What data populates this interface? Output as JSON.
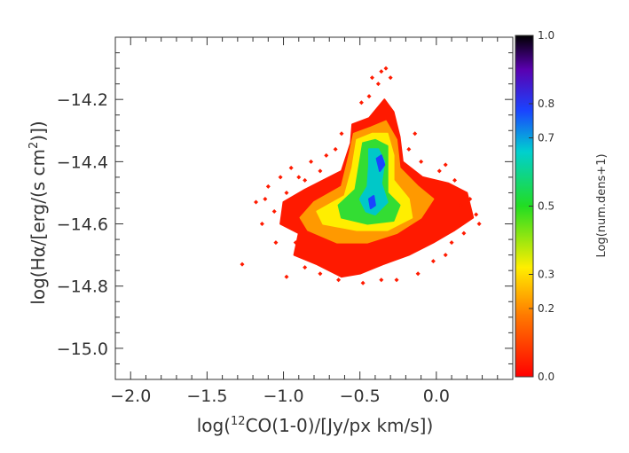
{
  "chart_data": {
    "type": "heatmap",
    "title": "",
    "xlabel": "log(12CO(1-0)/[Jy/px km/s])",
    "ylabel": "log(Hα/[erg/(s cm2)])",
    "xlim": [
      -2.1,
      0.5
    ],
    "ylim": [
      -15.1,
      -14.0
    ],
    "xticks": [
      -2.0,
      -1.5,
      -1.0,
      -0.5,
      0.0
    ],
    "xtick_labels": [
      "−2.0",
      "−1.5",
      "−1.0",
      "−0.5",
      "0.0"
    ],
    "yticks": [
      -14.2,
      -14.4,
      -14.6,
      -14.8,
      -15.0
    ],
    "ytick_labels": [
      "−14.2",
      "−14.4",
      "−14.6",
      "−14.8",
      "−15.0"
    ],
    "grid": false,
    "colorbar": {
      "label": "Log(num.dens+1)",
      "range": [
        0.0,
        1.0
      ],
      "ticks": [
        0.0,
        0.2,
        0.3,
        0.5,
        0.7,
        0.8,
        1.0
      ],
      "tick_labels": [
        "0.0",
        "0.2",
        "0.3",
        "0.5",
        "0.7",
        "0.8",
        "1.0"
      ],
      "colormap": "rainbow (red → black)"
    },
    "density_regions": [
      {
        "level": 0.05,
        "color": "#ff1a00",
        "polygon": [
          [
            -0.78,
            -14.73
          ],
          [
            -0.93,
            -14.7
          ],
          [
            -0.9,
            -14.63
          ],
          [
            -1.02,
            -14.6
          ],
          [
            -1.0,
            -14.53
          ],
          [
            -0.86,
            -14.49
          ],
          [
            -0.62,
            -14.43
          ],
          [
            -0.56,
            -14.34
          ],
          [
            -0.55,
            -14.28
          ],
          [
            -0.44,
            -14.26
          ],
          [
            -0.34,
            -14.2
          ],
          [
            -0.28,
            -14.24
          ],
          [
            -0.24,
            -14.32
          ],
          [
            -0.22,
            -14.4
          ],
          [
            -0.09,
            -14.45
          ],
          [
            0.08,
            -14.47
          ],
          [
            0.2,
            -14.5
          ],
          [
            0.24,
            -14.58
          ],
          [
            0.12,
            -14.62
          ],
          [
            -0.02,
            -14.66
          ],
          [
            -0.18,
            -14.7
          ],
          [
            -0.35,
            -14.73
          ],
          [
            -0.5,
            -14.76
          ],
          [
            -0.62,
            -14.77
          ]
        ]
      },
      {
        "level": 0.15,
        "color": "#ff9900",
        "polygon": [
          [
            -0.84,
            -14.62
          ],
          [
            -0.89,
            -14.58
          ],
          [
            -0.8,
            -14.53
          ],
          [
            -0.62,
            -14.48
          ],
          [
            -0.57,
            -14.38
          ],
          [
            -0.54,
            -14.31
          ],
          [
            -0.43,
            -14.29
          ],
          [
            -0.33,
            -14.27
          ],
          [
            -0.26,
            -14.33
          ],
          [
            -0.24,
            -14.42
          ],
          [
            -0.12,
            -14.48
          ],
          [
            -0.02,
            -14.52
          ],
          [
            -0.1,
            -14.58
          ],
          [
            -0.26,
            -14.63
          ],
          [
            -0.45,
            -14.66
          ],
          [
            -0.65,
            -14.66
          ]
        ]
      },
      {
        "level": 0.25,
        "color": "#ffee00",
        "polygon": [
          [
            -0.74,
            -14.6
          ],
          [
            -0.78,
            -14.56
          ],
          [
            -0.6,
            -14.51
          ],
          [
            -0.55,
            -14.42
          ],
          [
            -0.52,
            -14.33
          ],
          [
            -0.42,
            -14.31
          ],
          [
            -0.32,
            -14.31
          ],
          [
            -0.28,
            -14.38
          ],
          [
            -0.28,
            -14.46
          ],
          [
            -0.18,
            -14.52
          ],
          [
            -0.16,
            -14.58
          ],
          [
            -0.32,
            -14.62
          ],
          [
            -0.52,
            -14.62
          ]
        ]
      },
      {
        "level": 0.4,
        "color": "#33dd33",
        "polygon": [
          [
            -0.62,
            -14.58
          ],
          [
            -0.64,
            -14.54
          ],
          [
            -0.53,
            -14.49
          ],
          [
            -0.5,
            -14.4
          ],
          [
            -0.48,
            -14.34
          ],
          [
            -0.4,
            -14.33
          ],
          [
            -0.32,
            -14.35
          ],
          [
            -0.32,
            -14.43
          ],
          [
            -0.32,
            -14.5
          ],
          [
            -0.24,
            -14.54
          ],
          [
            -0.28,
            -14.59
          ],
          [
            -0.45,
            -14.6
          ]
        ]
      },
      {
        "level": 0.6,
        "color": "#00c8c8",
        "polygon": [
          [
            -0.46,
            -14.56
          ],
          [
            -0.5,
            -14.52
          ],
          [
            -0.45,
            -14.48
          ],
          [
            -0.44,
            -14.41
          ],
          [
            -0.44,
            -14.36
          ],
          [
            -0.38,
            -14.36
          ],
          [
            -0.34,
            -14.4
          ],
          [
            -0.36,
            -14.47
          ],
          [
            -0.32,
            -14.53
          ],
          [
            -0.4,
            -14.57
          ]
        ]
      },
      {
        "level": 0.75,
        "color": "#1a44ff",
        "polygon": [
          [
            -0.39,
            -14.39
          ],
          [
            -0.36,
            -14.38
          ],
          [
            -0.34,
            -14.41
          ],
          [
            -0.37,
            -14.43
          ]
        ]
      },
      {
        "level": 0.75,
        "color": "#1a44ff",
        "polygon": [
          [
            -0.44,
            -14.52
          ],
          [
            -0.41,
            -14.51
          ],
          [
            -0.4,
            -14.54
          ],
          [
            -0.43,
            -14.55
          ]
        ]
      }
    ],
    "scatter_points": [
      [
        -1.27,
        -14.73
      ],
      [
        -1.18,
        -14.53
      ],
      [
        -1.14,
        -14.6
      ],
      [
        -1.1,
        -14.48
      ],
      [
        -1.06,
        -14.56
      ],
      [
        -1.05,
        -14.66
      ],
      [
        -1.02,
        -14.45
      ],
      [
        -0.98,
        -14.77
      ],
      [
        -0.95,
        -14.42
      ],
      [
        -0.9,
        -14.45
      ],
      [
        -0.86,
        -14.46
      ],
      [
        -0.82,
        -14.4
      ],
      [
        -0.76,
        -14.43
      ],
      [
        -0.72,
        -14.38
      ],
      [
        -0.66,
        -14.36
      ],
      [
        -0.62,
        -14.31
      ],
      [
        -0.49,
        -14.21
      ],
      [
        -0.44,
        -14.19
      ],
      [
        -0.42,
        -14.13
      ],
      [
        -0.38,
        -14.15
      ],
      [
        -0.36,
        -14.11
      ],
      [
        -0.33,
        -14.1
      ],
      [
        -0.3,
        -14.13
      ],
      [
        -0.34,
        -14.24
      ],
      [
        -0.18,
        -14.36
      ],
      [
        -0.14,
        -14.31
      ],
      [
        -0.1,
        -14.4
      ],
      [
        0.02,
        -14.43
      ],
      [
        0.06,
        -14.41
      ],
      [
        0.12,
        -14.46
      ],
      [
        0.16,
        -14.54
      ],
      [
        0.22,
        -14.52
      ],
      [
        0.26,
        -14.57
      ],
      [
        0.28,
        -14.6
      ],
      [
        0.18,
        -14.63
      ],
      [
        0.1,
        -14.66
      ],
      [
        0.06,
        -14.7
      ],
      [
        -0.02,
        -14.72
      ],
      [
        -0.12,
        -14.76
      ],
      [
        -0.26,
        -14.78
      ],
      [
        -0.36,
        -14.78
      ],
      [
        -0.48,
        -14.79
      ],
      [
        -0.64,
        -14.78
      ],
      [
        -0.76,
        -14.76
      ],
      [
        -0.86,
        -14.74
      ],
      [
        -0.92,
        -14.66
      ],
      [
        -1.12,
        -14.52
      ],
      [
        -0.98,
        -14.5
      ]
    ]
  }
}
